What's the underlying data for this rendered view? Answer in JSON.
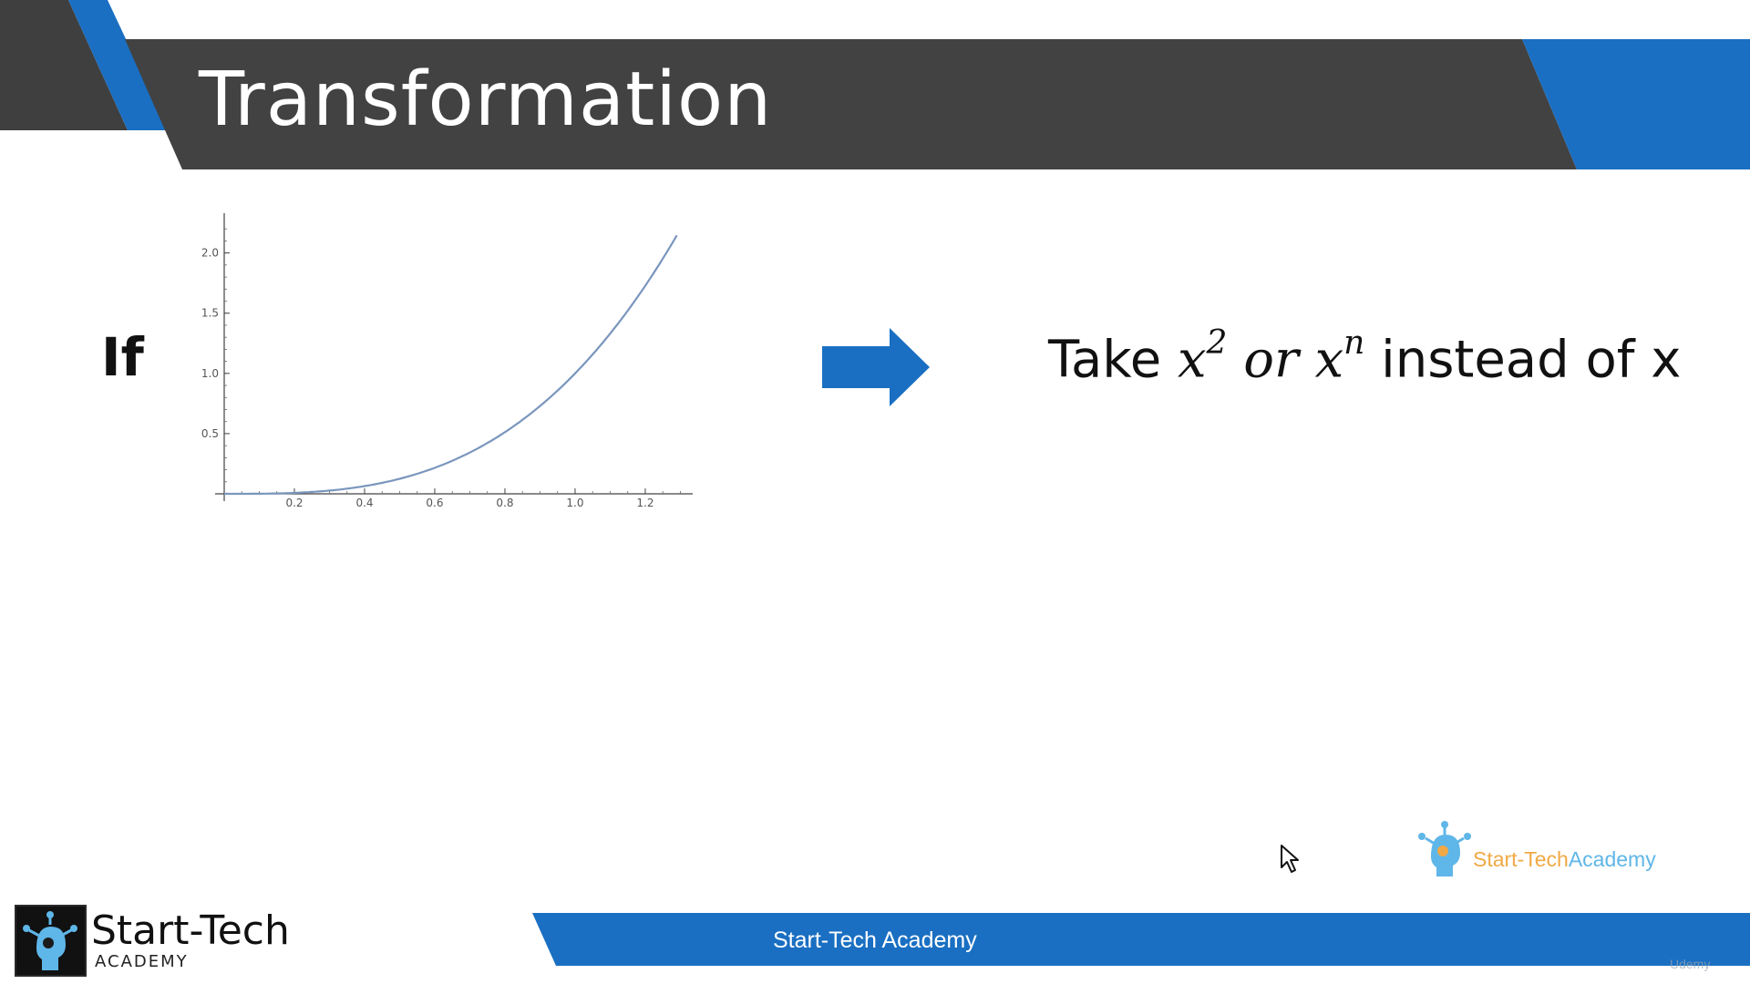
{
  "slide": {
    "title": "Transformation",
    "if_label": "If",
    "statement": {
      "take": "Take",
      "x1": "x",
      "exp1": "2",
      "or_word": "or",
      "x2": "x",
      "exp2": "n",
      "tail": "instead of x"
    }
  },
  "chart_data": {
    "type": "line",
    "title": "",
    "xlabel": "",
    "ylabel": "",
    "xlim": [
      0,
      1.33
    ],
    "ylim": [
      0,
      2.3
    ],
    "x_ticks": [
      "0.2",
      "0.4",
      "0.6",
      "0.8",
      "1.0",
      "1.2"
    ],
    "y_ticks": [
      "0.5",
      "1.0",
      "1.5",
      "2.0"
    ],
    "grid": false,
    "series": [
      {
        "color": "#7a96bd",
        "x": [
          0,
          0.1,
          0.2,
          0.3,
          0.4,
          0.5,
          0.6,
          0.7,
          0.8,
          0.9,
          1.0,
          1.1,
          1.2,
          1.3
        ],
        "y": [
          0,
          0.001,
          0.008,
          0.027,
          0.064,
          0.125,
          0.216,
          0.343,
          0.512,
          0.729,
          1.0,
          1.331,
          1.728,
          2.197
        ]
      }
    ]
  },
  "branding": {
    "corner_logo_part1": "Start-Tech",
    "corner_logo_part2": "Academy",
    "footer_text": "Start-Tech Academy",
    "footer_logo_name": "Start-Tech",
    "footer_logo_sub": "ACADEMY",
    "watermark": "Udemy"
  },
  "colors": {
    "dark_band": "#424242",
    "accent_blue": "#1a6fc2",
    "curve": "#7a96bd"
  },
  "icons": {
    "arrow": "right-arrow-icon",
    "cursor": "mouse-cursor-icon",
    "logo": "robot-head-logo"
  }
}
